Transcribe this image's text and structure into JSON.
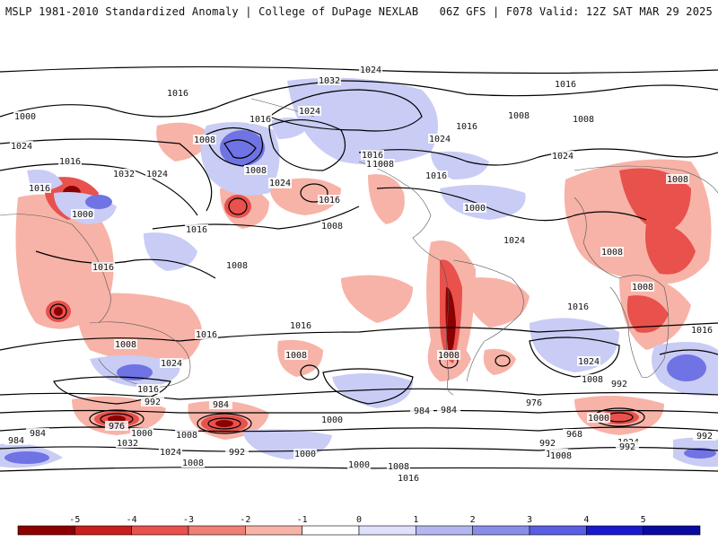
{
  "header": {
    "left_title": "MSLP 1981-2010 Standardized Anomaly | College of DuPage NEXLAB",
    "right_title": "06Z GFS | F078 Valid: 12Z SAT MAR 29 2025"
  },
  "colors": {
    "strong_negative": "#8b0000",
    "negative": "#e8514c",
    "weak_negative": "#f7b3a8",
    "neutral": "#ffffff",
    "weak_positive": "#c9ccf4",
    "positive": "#6f73e3",
    "strong_positive": "#1a1acc",
    "contour": "#000000"
  },
  "colorbar": {
    "ticks": [
      "-5",
      "-4",
      "-3",
      "-2",
      "-1",
      "0",
      "1",
      "2",
      "3",
      "4",
      "5"
    ],
    "colors": [
      "#8b0000",
      "#c81e1e",
      "#e8514c",
      "#f07f75",
      "#f7b3a8",
      "#ffffff",
      "#dfe0fa",
      "#b3b6f0",
      "#8a8de8",
      "#5a5ee0",
      "#1a1acc",
      "#0a0aa0"
    ]
  },
  "isobar_labels": [
    "1024",
    "1032",
    "1016",
    "1016",
    "1000",
    "1008",
    "1024",
    "1016",
    "1008",
    "1016",
    "1008",
    "1024",
    "1016",
    "1032",
    "1024",
    "1008",
    "1016",
    "1024",
    "1016",
    "1008",
    "1024",
    "1008",
    "1016",
    "1008",
    "1000",
    "1016",
    "1024",
    "1016",
    "1008",
    "1016",
    "1008",
    "1008",
    "1000",
    "1016",
    "1024",
    "1016",
    "1008",
    "1016",
    "1024",
    "1008",
    "1016",
    "1016",
    "1008",
    "1008",
    "1024",
    "1008",
    "992",
    "1016",
    "984",
    "1000",
    "976",
    "992",
    "984",
    "1000",
    "1008",
    "984",
    "992",
    "984",
    "976",
    "968",
    "1032",
    "1024",
    "1008",
    "1000",
    "992",
    "1024",
    "1000",
    "992",
    "1000",
    "1008",
    "1016",
    "1008",
    "992",
    "1000",
    "984"
  ]
}
